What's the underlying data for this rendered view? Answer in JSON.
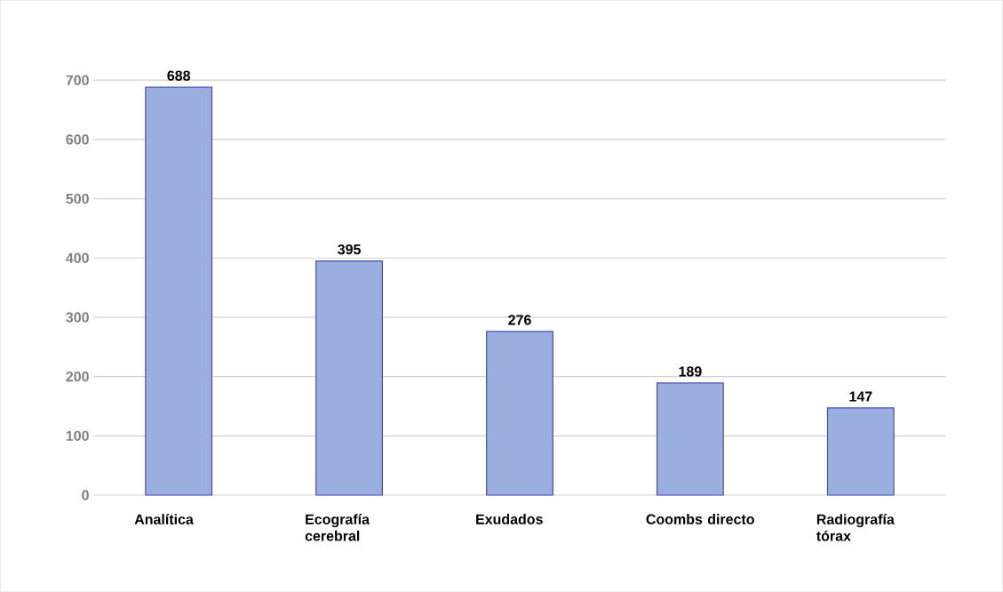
{
  "chart_data": {
    "type": "bar",
    "categories": [
      "Analítica",
      "Ecografía cerebral",
      "Exudados",
      "Coombs directo",
      "Radiografía tórax"
    ],
    "values": [
      688,
      395,
      276,
      189,
      147
    ],
    "color": "#9aaee0",
    "ylim": [
      0,
      700
    ],
    "yticks": [
      0,
      100,
      200,
      300,
      400,
      500,
      600,
      700
    ],
    "grid": "y",
    "data_labels": true
  }
}
